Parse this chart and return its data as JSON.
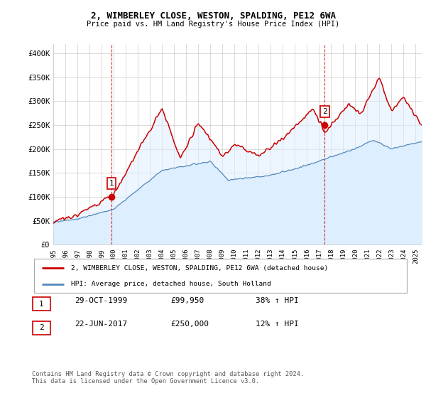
{
  "title1": "2, WIMBERLEY CLOSE, WESTON, SPALDING, PE12 6WA",
  "title2": "Price paid vs. HM Land Registry's House Price Index (HPI)",
  "ylabel_ticks": [
    "£0",
    "£50K",
    "£100K",
    "£150K",
    "£200K",
    "£250K",
    "£300K",
    "£350K",
    "£400K"
  ],
  "ytick_values": [
    0,
    50000,
    100000,
    150000,
    200000,
    250000,
    300000,
    350000,
    400000
  ],
  "ylim": [
    0,
    420000
  ],
  "xlim_start": 1995.0,
  "xlim_end": 2025.5,
  "sale1_x": 1999.83,
  "sale1_y": 99950,
  "sale1_label": "1",
  "sale2_x": 2017.47,
  "sale2_y": 250000,
  "sale2_label": "2",
  "vline1_x": 1999.83,
  "vline2_x": 2017.47,
  "red_color": "#cc0000",
  "blue_color": "#5588bb",
  "blue_fill_color": "#ddeeff",
  "legend_label1": "2, WIMBERLEY CLOSE, WESTON, SPALDING, PE12 6WA (detached house)",
  "legend_label2": "HPI: Average price, detached house, South Holland",
  "table_row1_num": "1",
  "table_row1_date": "29-OCT-1999",
  "table_row1_price": "£99,950",
  "table_row1_hpi": "38% ↑ HPI",
  "table_row2_num": "2",
  "table_row2_date": "22-JUN-2017",
  "table_row2_price": "£250,000",
  "table_row2_hpi": "12% ↑ HPI",
  "footer": "Contains HM Land Registry data © Crown copyright and database right 2024.\nThis data is licensed under the Open Government Licence v3.0.",
  "background_color": "#ffffff",
  "grid_color": "#cccccc"
}
